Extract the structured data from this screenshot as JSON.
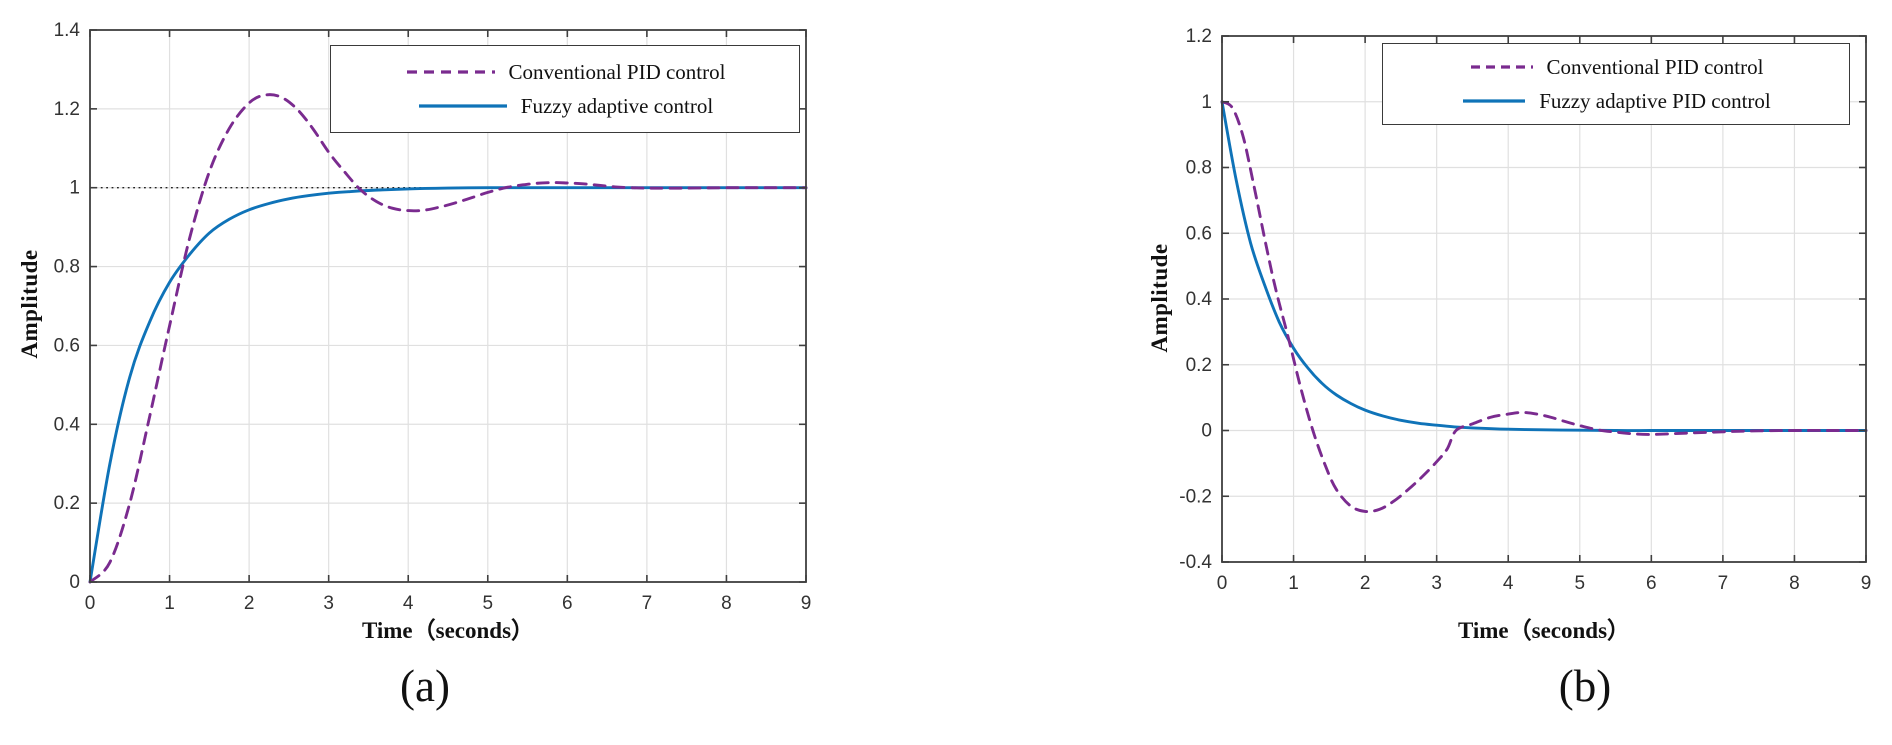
{
  "colors": {
    "conventional_pid": "#7A2B8F",
    "fuzzy_adaptive": "#0F73B8",
    "grid": "#e0e0e0",
    "axis": "#3f3f3f",
    "tick_label": "#333333",
    "reference": "#222222",
    "background": "#ffffff"
  },
  "chart_data": [
    {
      "type": "line",
      "caption": "(a)",
      "xlabel": "Time（seconds）",
      "ylabel": "Amplitude",
      "xlim": [
        0,
        9
      ],
      "ylim": [
        0,
        1.4
      ],
      "xticks": [
        0,
        1,
        2,
        3,
        4,
        5,
        6,
        7,
        8,
        9
      ],
      "xtick_labels": [
        "0",
        "1",
        "2",
        "3",
        "4",
        "5",
        "6",
        "7",
        "8",
        "9"
      ],
      "yticks": [
        0,
        0.2,
        0.4,
        0.6,
        0.8,
        1,
        1.2,
        1.4
      ],
      "ytick_labels": [
        "0",
        "0.2",
        "0.4",
        "0.6",
        "0.8",
        "1",
        "1.2",
        "1.4"
      ],
      "grid": true,
      "legend_position": "top-right",
      "reference_line": {
        "y": 1,
        "style": "dotted"
      },
      "series": [
        {
          "name": "Conventional PID control",
          "color": "#7A2B8F",
          "dash": true,
          "points": [
            [
              0,
              0
            ],
            [
              0.25,
              0.05
            ],
            [
              0.5,
              0.2
            ],
            [
              0.75,
              0.42
            ],
            [
              1,
              0.65
            ],
            [
              1.25,
              0.87
            ],
            [
              1.5,
              1.04
            ],
            [
              1.75,
              1.15
            ],
            [
              2,
              1.215
            ],
            [
              2.2,
              1.235
            ],
            [
              2.4,
              1.23
            ],
            [
              2.6,
              1.2
            ],
            [
              2.8,
              1.15
            ],
            [
              3,
              1.09
            ],
            [
              3.2,
              1.04
            ],
            [
              3.4,
              0.995
            ],
            [
              3.6,
              0.965
            ],
            [
              3.8,
              0.948
            ],
            [
              4,
              0.942
            ],
            [
              4.2,
              0.943
            ],
            [
              4.4,
              0.951
            ],
            [
              4.6,
              0.962
            ],
            [
              4.8,
              0.975
            ],
            [
              5,
              0.988
            ],
            [
              5.2,
              0.999
            ],
            [
              5.4,
              1.006
            ],
            [
              5.6,
              1.011
            ],
            [
              5.8,
              1.013
            ],
            [
              6,
              1.012
            ],
            [
              6.2,
              1.01
            ],
            [
              6.4,
              1.006
            ],
            [
              6.6,
              1.002
            ],
            [
              6.8,
              1.0
            ],
            [
              7,
              0.999
            ],
            [
              7.5,
              0.999
            ],
            [
              8,
              1.0
            ],
            [
              8.5,
              1.0
            ],
            [
              9,
              1.0
            ]
          ]
        },
        {
          "name": "Fuzzy adaptive control",
          "color": "#0F73B8",
          "dash": false,
          "points": [
            [
              0,
              0
            ],
            [
              0.25,
              0.3
            ],
            [
              0.5,
              0.52
            ],
            [
              0.75,
              0.66
            ],
            [
              1,
              0.76
            ],
            [
              1.25,
              0.83
            ],
            [
              1.5,
              0.885
            ],
            [
              1.75,
              0.92
            ],
            [
              2,
              0.944
            ],
            [
              2.25,
              0.96
            ],
            [
              2.5,
              0.972
            ],
            [
              2.75,
              0.98
            ],
            [
              3,
              0.986
            ],
            [
              3.25,
              0.99
            ],
            [
              3.5,
              0.993
            ],
            [
              4,
              0.997
            ],
            [
              4.5,
              0.999
            ],
            [
              5,
              1.0
            ],
            [
              5.5,
              1.0
            ],
            [
              6,
              1.0
            ],
            [
              6.5,
              1.0
            ],
            [
              7,
              1.0
            ],
            [
              8,
              1.0
            ],
            [
              9,
              1.0
            ]
          ]
        }
      ]
    },
    {
      "type": "line",
      "caption": "(b)",
      "xlabel": "Time（seconds）",
      "ylabel": "Amplitude",
      "xlim": [
        0,
        9
      ],
      "ylim": [
        -0.4,
        1.2
      ],
      "xticks": [
        0,
        1,
        2,
        3,
        4,
        5,
        6,
        7,
        8,
        9
      ],
      "xtick_labels": [
        "0",
        "1",
        "2",
        "3",
        "4",
        "5",
        "6",
        "7",
        "8",
        "9"
      ],
      "yticks": [
        -0.4,
        -0.2,
        0,
        0.2,
        0.4,
        0.6,
        0.8,
        1,
        1.2
      ],
      "ytick_labels": [
        "-0.4",
        "-0.2",
        "0",
        "0.2",
        "0.4",
        "0.6",
        "0.8",
        "1",
        "1.2"
      ],
      "grid": true,
      "legend_position": "top-right",
      "series": [
        {
          "name": "Conventional PID control",
          "color": "#7A2B8F",
          "dash": true,
          "points": [
            [
              0,
              1
            ],
            [
              0.15,
              0.98
            ],
            [
              0.3,
              0.89
            ],
            [
              0.45,
              0.74
            ],
            [
              0.6,
              0.58
            ],
            [
              0.75,
              0.43
            ],
            [
              0.93,
              0.28
            ],
            [
              1.1,
              0.13
            ],
            [
              1.27,
              0
            ],
            [
              1.45,
              -0.11
            ],
            [
              1.6,
              -0.18
            ],
            [
              1.8,
              -0.23
            ],
            [
              2,
              -0.246
            ],
            [
              2.2,
              -0.24
            ],
            [
              2.4,
              -0.215
            ],
            [
              2.6,
              -0.18
            ],
            [
              2.8,
              -0.14
            ],
            [
              3,
              -0.095
            ],
            [
              3.15,
              -0.055
            ],
            [
              3.27,
              0
            ],
            [
              3.5,
              0.02
            ],
            [
              3.75,
              0.04
            ],
            [
              4,
              0.05
            ],
            [
              4.2,
              0.055
            ],
            [
              4.4,
              0.05
            ],
            [
              4.6,
              0.04
            ],
            [
              4.8,
              0.027
            ],
            [
              5,
              0.015
            ],
            [
              5.25,
              0.002
            ],
            [
              5.5,
              -0.005
            ],
            [
              5.75,
              -0.01
            ],
            [
              6,
              -0.012
            ],
            [
              6.5,
              -0.008
            ],
            [
              7,
              -0.004
            ],
            [
              7.5,
              -0.001
            ],
            [
              8,
              0
            ],
            [
              8.5,
              0
            ],
            [
              9,
              0
            ]
          ]
        },
        {
          "name": "Fuzzy adaptive PID control",
          "color": "#0F73B8",
          "dash": false,
          "points": [
            [
              0,
              1
            ],
            [
              0.2,
              0.76
            ],
            [
              0.4,
              0.57
            ],
            [
              0.6,
              0.44
            ],
            [
              0.8,
              0.33
            ],
            [
              1,
              0.25
            ],
            [
              1.2,
              0.19
            ],
            [
              1.4,
              0.143
            ],
            [
              1.6,
              0.108
            ],
            [
              1.8,
              0.082
            ],
            [
              2,
              0.062
            ],
            [
              2.25,
              0.044
            ],
            [
              2.5,
              0.031
            ],
            [
              2.75,
              0.022
            ],
            [
              3,
              0.016
            ],
            [
              3.25,
              0.011
            ],
            [
              3.5,
              0.008
            ],
            [
              4,
              0.004
            ],
            [
              4.5,
              0.002
            ],
            [
              5,
              0.001
            ],
            [
              5.5,
              0
            ],
            [
              6,
              0
            ],
            [
              6.5,
              0
            ],
            [
              7,
              0
            ],
            [
              8,
              0
            ],
            [
              9,
              0
            ]
          ]
        }
      ]
    }
  ]
}
